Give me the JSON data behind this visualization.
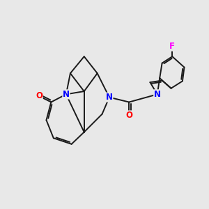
{
  "background_color": "#e8e8e8",
  "atom_colors": {
    "N": "#0000ff",
    "O": "#ff0000",
    "F": "#ff00ff",
    "C": "#000000"
  },
  "bond_color": "#1a1a1a",
  "bond_width": 1.4,
  "font_size_atom": 8.5
}
